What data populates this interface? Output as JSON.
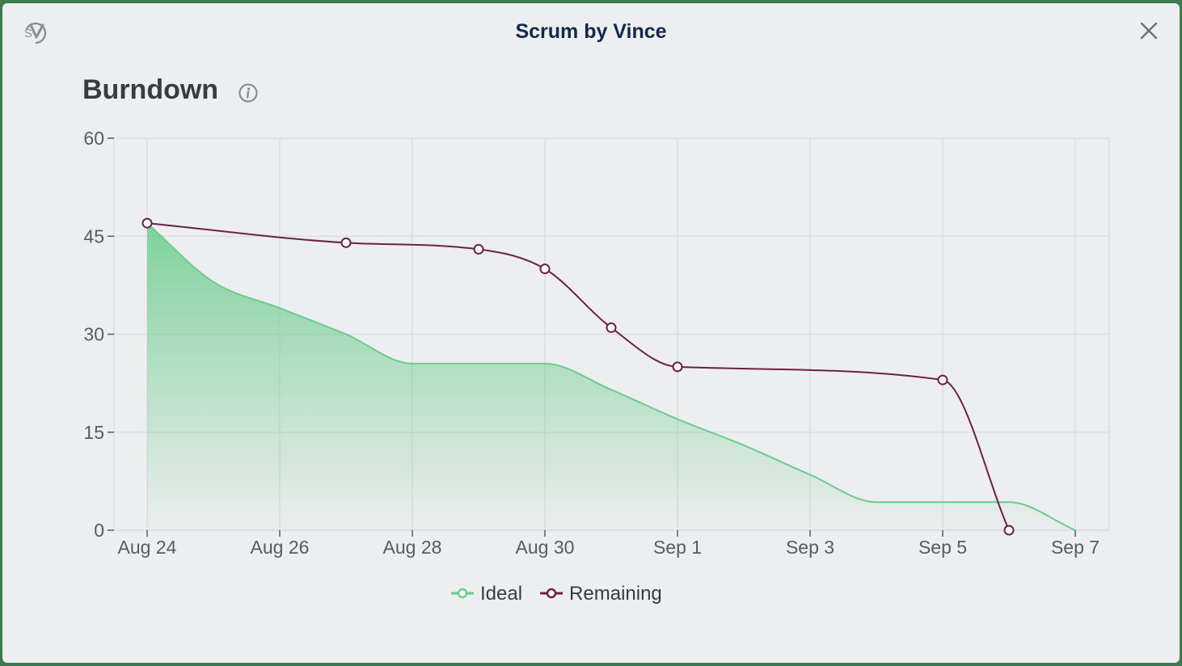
{
  "app": {
    "title": "Scrum by Vince"
  },
  "section": {
    "title": "Burndown"
  },
  "icons": {
    "logo": "sv-logo-icon",
    "close": "close-icon",
    "info": "info-icon"
  },
  "colors": {
    "ideal": "#6dcc8d",
    "remaining": "#6b2146",
    "background": "#edeef0"
  },
  "chart_data": {
    "type": "line",
    "title": "Burndown",
    "x_axis": {
      "type": "date",
      "range": [
        "Aug 24",
        "Sep 7"
      ],
      "tick_labels": [
        "Aug 24",
        "Aug 26",
        "Aug 28",
        "Aug 30",
        "Sep 1",
        "Sep 3",
        "Sep 5",
        "Sep 7"
      ]
    },
    "y_axis": {
      "range": [
        0,
        60
      ],
      "tick_labels": [
        "0",
        "15",
        "30",
        "45",
        "60"
      ]
    },
    "grid": true,
    "legend": {
      "position": "bottom-center"
    },
    "series": [
      {
        "name": "Ideal",
        "style": "area",
        "color": "#6dcc8d",
        "points": [
          [
            "Aug 24",
            47
          ],
          [
            "Aug 25",
            38
          ],
          [
            "Aug 26",
            34
          ],
          [
            "Aug 27",
            30
          ],
          [
            "Aug 28",
            25.5
          ],
          [
            "Aug 29",
            25.5
          ],
          [
            "Aug 30",
            25.5
          ],
          [
            "Aug 31",
            21.5
          ],
          [
            "Sep 1",
            17
          ],
          [
            "Sep 2",
            13
          ],
          [
            "Sep 3",
            8.5
          ],
          [
            "Sep 4",
            4.3
          ],
          [
            "Sep 5",
            4.3
          ],
          [
            "Sep 6",
            4.3
          ],
          [
            "Sep 7",
            0
          ]
        ]
      },
      {
        "name": "Remaining",
        "style": "line",
        "color": "#6b2146",
        "points": [
          [
            "Aug 24",
            47
          ],
          [
            "Aug 27",
            44
          ],
          [
            "Aug 29",
            43
          ],
          [
            "Aug 30",
            40
          ],
          [
            "Aug 31",
            31
          ],
          [
            "Sep 1",
            25
          ],
          [
            "Sep 5",
            23
          ],
          [
            "Sep 6",
            0
          ]
        ]
      }
    ]
  }
}
